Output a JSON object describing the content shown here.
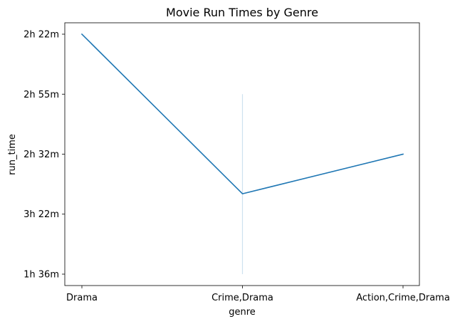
{
  "chart_data": {
    "type": "line",
    "title": "Movie Run Times by Genre",
    "xlabel": "genre",
    "ylabel": "run_time",
    "categories": [
      "Drama",
      "Crime,Drama",
      "Action,Crime,Drama"
    ],
    "y_categories": [
      "1h 36m",
      "3h 22m",
      "2h 32m",
      "2h 55m",
      "2h 22m"
    ],
    "series": [
      {
        "values": [
          4,
          1.34,
          2
        ],
        "color": "#1f77b4"
      }
    ],
    "error_bars": [
      {
        "category": "Crime,Drama",
        "low": 0,
        "high": 3,
        "color": "#1f77b4"
      }
    ],
    "grid": false,
    "legend": "none"
  }
}
